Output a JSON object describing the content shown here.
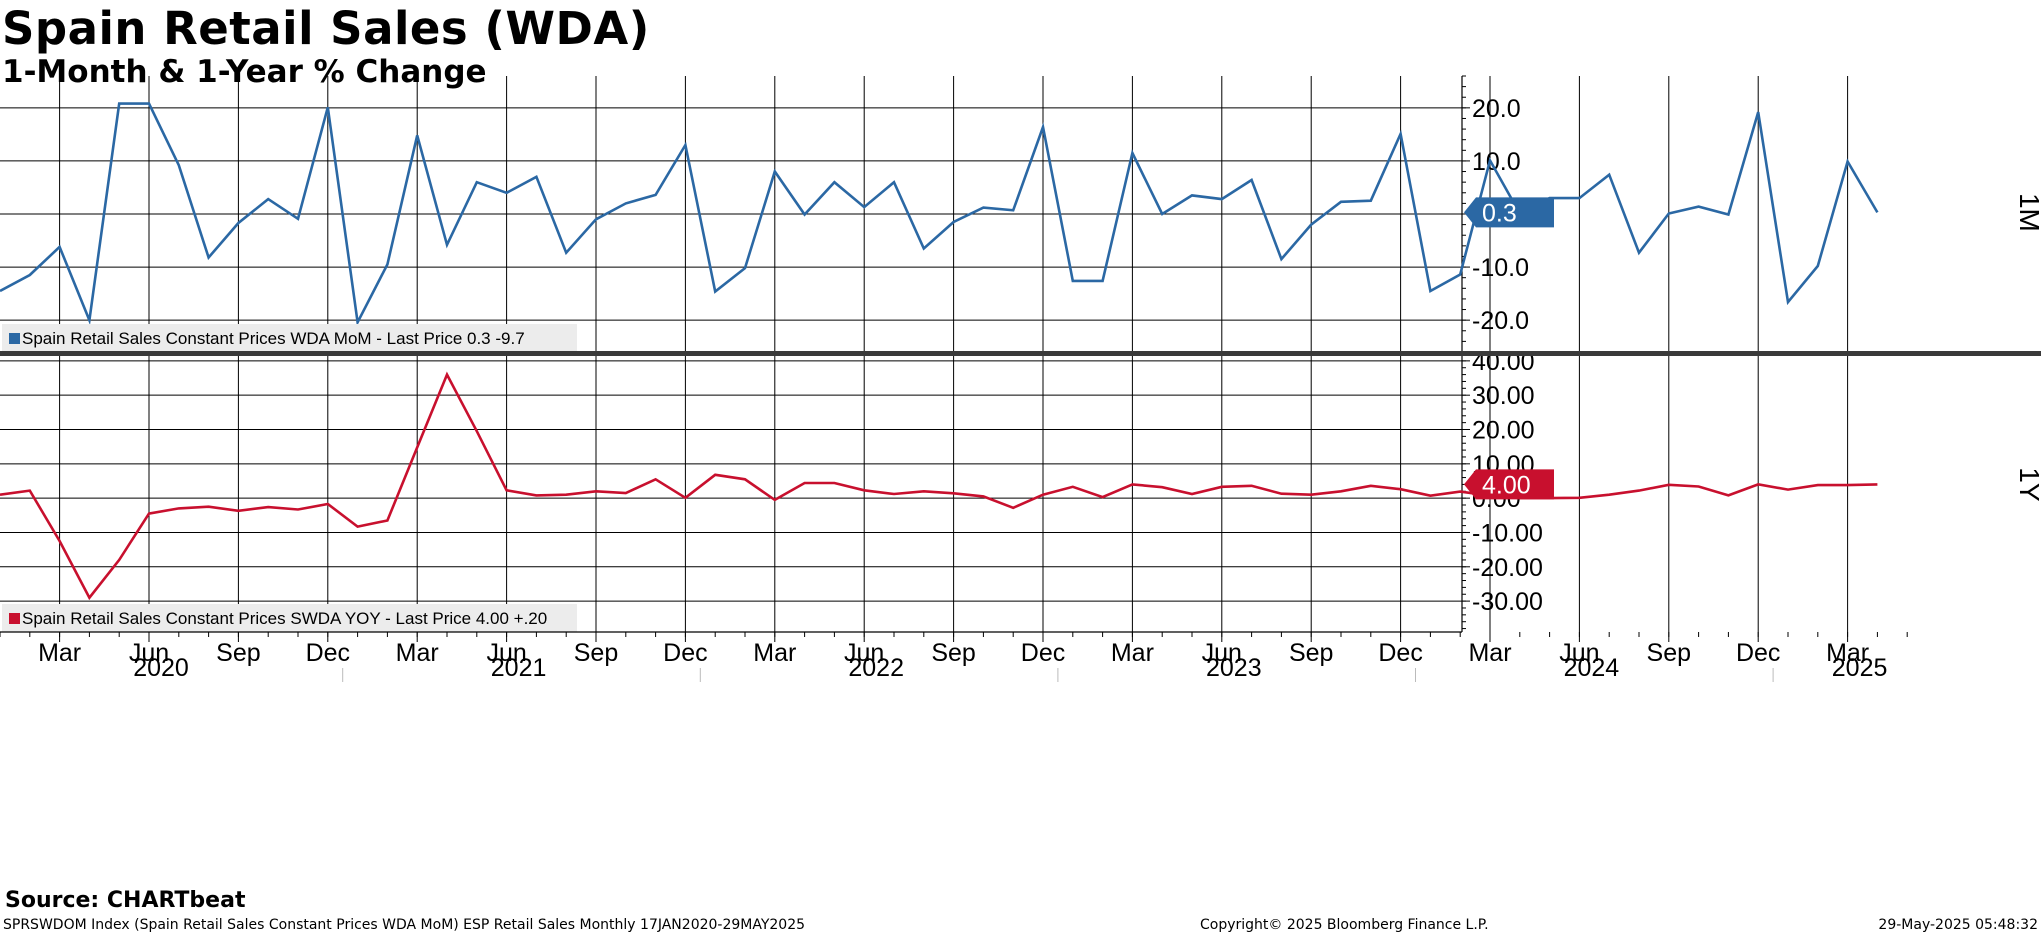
{
  "header": {
    "title": "Spain Retail Sales (WDA)",
    "subtitle": "1-Month & 1-Year % Change"
  },
  "footer": {
    "source": "Source: CHARTbeat",
    "description": "SPRSWDOM Index (Spain Retail Sales Constant Prices WDA MoM) ESP Retail Sales  Monthly 17JAN2020-29MAY2025",
    "copyright": "Copyright© 2025 Bloomberg Finance L.P.",
    "timestamp": "29-May-2025 05:48:32"
  },
  "colors": {
    "mom": "#2b68a4",
    "yoy": "#c8102e"
  },
  "chart_data": [
    {
      "type": "line",
      "panel": "top",
      "axis_label": "1M",
      "ylim": [
        -26,
        26
      ],
      "yticks": [
        "20.0",
        "10.0",
        "0.0",
        "-10.0",
        "-20.0"
      ],
      "ytick_values": [
        20,
        10,
        0,
        -10,
        -20
      ],
      "last_value_label": "0.3",
      "last_value": 0.3,
      "grid": true,
      "series": [
        {
          "legend": "Spain Retail Sales Constant Prices WDA MoM - Last Price 0.3  -9.7",
          "color": "#2b68a4",
          "x": [
            "2020-01",
            "2020-02",
            "2020-03",
            "2020-04",
            "2020-05",
            "2020-06",
            "2020-07",
            "2020-08",
            "2020-09",
            "2020-10",
            "2020-11",
            "2020-12",
            "2021-01",
            "2021-02",
            "2021-03",
            "2021-04",
            "2021-05",
            "2021-06",
            "2021-07",
            "2021-08",
            "2021-09",
            "2021-10",
            "2021-11",
            "2021-12",
            "2022-01",
            "2022-02",
            "2022-03",
            "2022-04",
            "2022-05",
            "2022-06",
            "2022-07",
            "2022-08",
            "2022-09",
            "2022-10",
            "2022-11",
            "2022-12",
            "2023-01",
            "2023-02",
            "2023-03",
            "2023-04",
            "2023-05",
            "2023-06",
            "2023-07",
            "2023-08",
            "2023-09",
            "2023-10",
            "2023-11",
            "2023-12",
            "2024-01",
            "2024-02",
            "2024-03",
            "2024-04",
            "2024-05",
            "2024-06",
            "2024-07",
            "2024-08",
            "2024-09",
            "2024-10",
            "2024-11",
            "2024-12",
            "2025-01",
            "2025-02",
            "2025-03",
            "2025-04"
          ],
          "values": [
            -14.5,
            -11.5,
            -6.2,
            -20.0,
            20.8,
            20.8,
            9.2,
            -8.2,
            -1.7,
            2.8,
            -0.9,
            20.1,
            -20.4,
            -9.5,
            14.8,
            -5.8,
            6.0,
            4.0,
            7.0,
            -7.3,
            -1.0,
            2.0,
            3.6,
            13.0,
            -14.6,
            -10.2,
            8.0,
            -0.1,
            6.0,
            1.3,
            6.0,
            -6.5,
            -1.5,
            1.2,
            0.7,
            16.4,
            -12.6,
            -12.6,
            11.5,
            0.0,
            3.5,
            2.8,
            6.4,
            -8.5,
            -2.0,
            2.3,
            2.5,
            15.1,
            -14.5,
            -11.4,
            10.1,
            0.1,
            3.0,
            3.0,
            7.4,
            -7.3,
            0.1,
            1.4,
            -0.1,
            19.2,
            -16.6,
            -9.8,
            9.9,
            0.3
          ]
        }
      ]
    },
    {
      "type": "line",
      "panel": "bottom",
      "axis_label": "1Y",
      "ylim": [
        -39,
        42
      ],
      "yticks": [
        "40.00",
        "30.00",
        "20.00",
        "10.00",
        "0.00",
        "-10.00",
        "-20.00",
        "-30.00"
      ],
      "ytick_values": [
        40,
        30,
        20,
        10,
        0,
        -10,
        -20,
        -30
      ],
      "last_value_label": "4.00",
      "last_value": 4.0,
      "grid": true,
      "series": [
        {
          "legend": "Spain Retail Sales Constant Prices SWDA YOY - Last Price 4.00  +.20",
          "color": "#c8102e",
          "x": [
            "2020-01",
            "2020-02",
            "2020-03",
            "2020-04",
            "2020-05",
            "2020-06",
            "2020-07",
            "2020-08",
            "2020-09",
            "2020-10",
            "2020-11",
            "2020-12",
            "2021-01",
            "2021-02",
            "2021-03",
            "2021-04",
            "2021-05",
            "2021-06",
            "2021-07",
            "2021-08",
            "2021-09",
            "2021-10",
            "2021-11",
            "2021-12",
            "2022-01",
            "2022-02",
            "2022-03",
            "2022-04",
            "2022-05",
            "2022-06",
            "2022-07",
            "2022-08",
            "2022-09",
            "2022-10",
            "2022-11",
            "2022-12",
            "2023-01",
            "2023-02",
            "2023-03",
            "2023-04",
            "2023-05",
            "2023-06",
            "2023-07",
            "2023-08",
            "2023-09",
            "2023-10",
            "2023-11",
            "2023-12",
            "2024-01",
            "2024-02",
            "2024-03",
            "2024-04",
            "2024-05",
            "2024-06",
            "2024-07",
            "2024-08",
            "2024-09",
            "2024-10",
            "2024-11",
            "2024-12",
            "2025-01",
            "2025-02",
            "2025-03",
            "2025-04"
          ],
          "values": [
            1.0,
            2.2,
            -12.5,
            -29.0,
            -18.0,
            -4.5,
            -3.0,
            -2.5,
            -3.7,
            -2.6,
            -3.3,
            -1.7,
            -8.3,
            -6.5,
            14.8,
            36.0,
            19.5,
            2.3,
            0.8,
            1.0,
            2.0,
            1.5,
            5.5,
            0.1,
            6.8,
            5.5,
            -0.5,
            4.4,
            4.4,
            2.3,
            1.2,
            2.0,
            1.4,
            0.5,
            -2.8,
            1.0,
            3.3,
            0.3,
            4.0,
            3.2,
            1.2,
            3.3,
            3.6,
            1.3,
            1.0,
            2.0,
            3.6,
            2.6,
            0.7,
            1.9,
            0.7,
            0.0,
            0.0,
            0.1,
            1.0,
            2.2,
            3.9,
            3.4,
            0.8,
            4.0,
            2.5,
            3.8,
            3.8,
            4.0
          ]
        }
      ]
    }
  ],
  "x_axis": {
    "month_labels": [
      {
        "date": "2020-03",
        "label": "Mar"
      },
      {
        "date": "2020-06",
        "label": "Jun"
      },
      {
        "date": "2020-09",
        "label": "Sep"
      },
      {
        "date": "2020-12",
        "label": "Dec"
      },
      {
        "date": "2021-03",
        "label": "Mar"
      },
      {
        "date": "2021-06",
        "label": "Jun"
      },
      {
        "date": "2021-09",
        "label": "Sep"
      },
      {
        "date": "2021-12",
        "label": "Dec"
      },
      {
        "date": "2022-03",
        "label": "Mar"
      },
      {
        "date": "2022-06",
        "label": "Jun"
      },
      {
        "date": "2022-09",
        "label": "Sep"
      },
      {
        "date": "2022-12",
        "label": "Dec"
      },
      {
        "date": "2023-03",
        "label": "Mar"
      },
      {
        "date": "2023-06",
        "label": "Jun"
      },
      {
        "date": "2023-09",
        "label": "Sep"
      },
      {
        "date": "2023-12",
        "label": "Dec"
      },
      {
        "date": "2024-03",
        "label": "Mar"
      },
      {
        "date": "2024-06",
        "label": "Jun"
      },
      {
        "date": "2024-09",
        "label": "Sep"
      },
      {
        "date": "2024-12",
        "label": "Dec"
      },
      {
        "date": "2025-03",
        "label": "Mar"
      }
    ],
    "year_labels": [
      {
        "date": "2020-06",
        "label": "2020"
      },
      {
        "date": "2021-06",
        "label": "2021"
      },
      {
        "date": "2022-06",
        "label": "2022"
      },
      {
        "date": "2023-06",
        "label": "2023"
      },
      {
        "date": "2024-06",
        "label": "2024"
      },
      {
        "date": "2025-03",
        "label": "2025"
      }
    ]
  }
}
